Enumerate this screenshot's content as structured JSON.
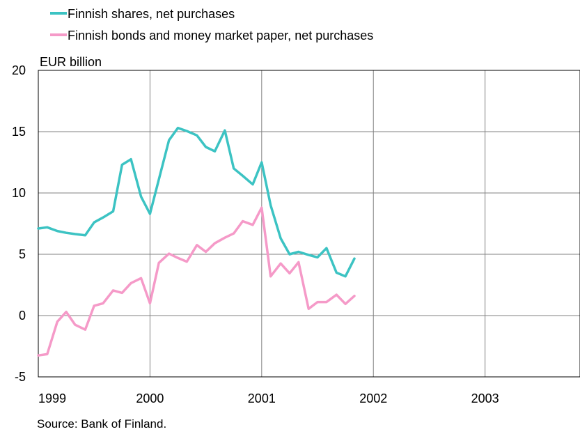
{
  "legend": [
    {
      "label": "Finnish shares, net purchases",
      "color": "#3cc3c3"
    },
    {
      "label": "Finnish bonds and money market paper, net purchases",
      "color": "#f59ac8"
    }
  ],
  "unit_label": "EUR billion",
  "source": "Source: Bank of Finland.",
  "chart_data": {
    "type": "line",
    "xlim": [
      1999.0,
      2003.85
    ],
    "ylim": [
      -5,
      20
    ],
    "y_ticks": [
      20,
      15,
      10,
      5,
      0,
      -5
    ],
    "x_ticks": [
      "1999",
      "2000",
      "2001",
      "2002",
      "2003"
    ],
    "grid": true,
    "legend_position": "top-left",
    "series": [
      {
        "name": "Finnish shares, net purchases",
        "color": "#3cc3c3",
        "points": [
          [
            1999.0,
            7.1
          ],
          [
            1999.08,
            7.2
          ],
          [
            1999.17,
            6.9
          ],
          [
            1999.25,
            6.75
          ],
          [
            1999.33,
            6.65
          ],
          [
            1999.42,
            6.55
          ],
          [
            1999.5,
            7.6
          ],
          [
            1999.58,
            8.0
          ],
          [
            1999.67,
            8.5
          ],
          [
            1999.75,
            12.3
          ],
          [
            1999.83,
            12.75
          ],
          [
            1999.92,
            9.7
          ],
          [
            2000.0,
            8.3
          ],
          [
            2000.17,
            14.3
          ],
          [
            2000.25,
            15.3
          ],
          [
            2000.33,
            15.05
          ],
          [
            2000.42,
            14.7
          ],
          [
            2000.5,
            13.75
          ],
          [
            2000.58,
            13.4
          ],
          [
            2000.67,
            15.1
          ],
          [
            2000.75,
            12.0
          ],
          [
            2000.83,
            11.4
          ],
          [
            2000.92,
            10.7
          ],
          [
            2001.0,
            12.5
          ],
          [
            2001.08,
            9.0
          ],
          [
            2001.17,
            6.3
          ],
          [
            2001.25,
            5.0
          ],
          [
            2001.33,
            5.2
          ],
          [
            2001.42,
            4.95
          ],
          [
            2001.5,
            4.75
          ],
          [
            2001.58,
            5.5
          ],
          [
            2001.67,
            3.5
          ],
          [
            2001.75,
            3.2
          ],
          [
            2001.83,
            4.65
          ]
        ]
      },
      {
        "name": "Finnish bonds and money market paper, net purchases",
        "color": "#f59ac8",
        "points": [
          [
            1999.0,
            -3.25
          ],
          [
            1999.08,
            -3.15
          ],
          [
            1999.17,
            -0.5
          ],
          [
            1999.25,
            0.3
          ],
          [
            1999.33,
            -0.75
          ],
          [
            1999.42,
            -1.15
          ],
          [
            1999.5,
            0.8
          ],
          [
            1999.58,
            1.0
          ],
          [
            1999.67,
            2.05
          ],
          [
            1999.75,
            1.85
          ],
          [
            1999.83,
            2.65
          ],
          [
            1999.92,
            3.05
          ],
          [
            2000.0,
            1.0
          ],
          [
            2000.08,
            4.3
          ],
          [
            2000.17,
            5.05
          ],
          [
            2000.25,
            4.7
          ],
          [
            2000.33,
            4.4
          ],
          [
            2000.42,
            5.75
          ],
          [
            2000.5,
            5.2
          ],
          [
            2000.58,
            5.9
          ],
          [
            2000.67,
            6.35
          ],
          [
            2000.75,
            6.7
          ],
          [
            2000.83,
            7.7
          ],
          [
            2000.92,
            7.4
          ],
          [
            2001.0,
            8.8
          ],
          [
            2001.08,
            3.2
          ],
          [
            2001.17,
            4.25
          ],
          [
            2001.25,
            3.45
          ],
          [
            2001.33,
            4.35
          ],
          [
            2001.42,
            0.55
          ],
          [
            2001.5,
            1.1
          ],
          [
            2001.58,
            1.1
          ],
          [
            2001.67,
            1.7
          ],
          [
            2001.75,
            0.95
          ],
          [
            2001.83,
            1.6
          ]
        ]
      }
    ]
  }
}
